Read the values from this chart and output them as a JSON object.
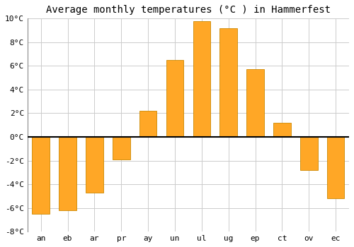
{
  "title": "Average monthly temperatures (°C ) in Hammerfest",
  "months": [
    "an",
    "eb",
    "ar",
    "pr",
    "ay",
    "un",
    "ul",
    "ug",
    "ep",
    "ct",
    "ov",
    "ec"
  ],
  "values": [
    -6.5,
    -6.2,
    -4.7,
    -1.9,
    2.2,
    6.5,
    9.8,
    9.2,
    5.7,
    1.2,
    -2.8,
    -5.2
  ],
  "bar_color": "#FFA726",
  "bar_edge_color": "#CC8800",
  "ylim": [
    -8,
    10
  ],
  "yticks": [
    -8,
    -6,
    -4,
    -2,
    0,
    2,
    4,
    6,
    8,
    10
  ],
  "ytick_labels": [
    "-8°C",
    "-6°C",
    "-4°C",
    "-2°C",
    "0°C",
    "2°C",
    "4°C",
    "6°C",
    "8°C",
    "10°C"
  ],
  "plot_background": "#ffffff",
  "fig_background": "#ffffff",
  "grid_color": "#cccccc",
  "zero_line_color": "#000000",
  "title_fontsize": 10,
  "tick_fontsize": 8,
  "bar_width": 0.65
}
